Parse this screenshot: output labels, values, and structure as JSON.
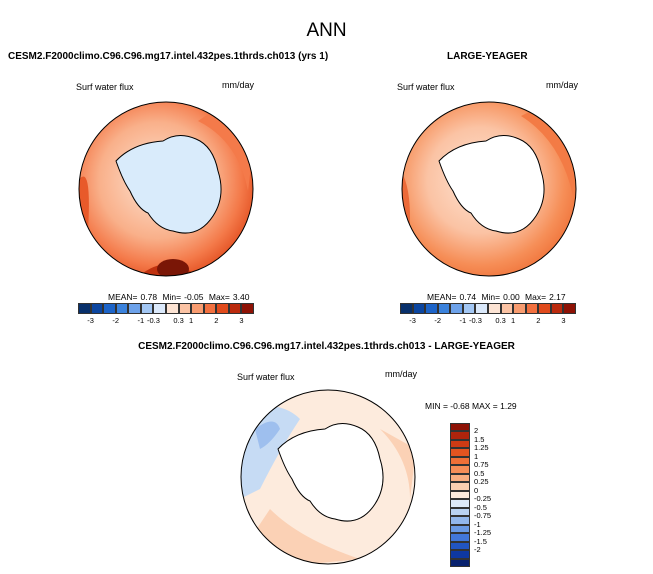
{
  "title": "ANN",
  "panel1": {
    "title": "CESM2.F2000climo.C96.C96.mg17.intel.432pes.1thrds.ch013 (yrs 1)",
    "field": "Surf water flux",
    "units": "mm/day",
    "mean_label": "MEAN=",
    "mean": "0.78",
    "min_label": "Min=",
    "min": "-0.05",
    "max_label": "Max=",
    "max": "3.40"
  },
  "panel2": {
    "title": "LARGE-YEAGER",
    "field": "Surf water flux",
    "units": "mm/day",
    "mean_label": "MEAN=",
    "mean": "0.74",
    "min_label": "Min=",
    "min": "0.00",
    "max_label": "Max=",
    "max": "2.17"
  },
  "panel3": {
    "title": "CESM2.F2000climo.C96.C96.mg17.intel.432pes.1thrds.ch013 - LARGE-YEAGER",
    "field": "Surf water flux",
    "units": "mm/day",
    "minmax_label": "MIN =  -0.68  MAX =   1.29"
  },
  "colorbar_horizontal": {
    "colors": [
      "#08306b",
      "#0c46a0",
      "#1d64c8",
      "#3b82dc",
      "#6da2ea",
      "#a3c7f4",
      "#dbe9fb",
      "#fde4d4",
      "#fbc3a4",
      "#f89c70",
      "#f2703f",
      "#e04a1c",
      "#bb2a0d",
      "#8e1205"
    ],
    "ticks": [
      "-3",
      "-2",
      "-1",
      "-0.3",
      "0.3",
      "1",
      "2",
      "3"
    ]
  },
  "colorbar_vertical": {
    "colors": [
      "#8e1205",
      "#b0240c",
      "#cf3b14",
      "#e35420",
      "#ef7037",
      "#f68e57",
      "#f9ae80",
      "#fbcfb0",
      "#fdebdd",
      "#dde9f8",
      "#b9d2f2",
      "#92b7ec",
      "#6a9ae4",
      "#4277d8",
      "#2155c2",
      "#0e38a0",
      "#08216e"
    ],
    "ticks": [
      "2",
      "1.5",
      "1.25",
      "1",
      "0.75",
      "0.5",
      "0.25",
      "0",
      "-0.25",
      "-0.5",
      "-0.75",
      "-1",
      "-1.25",
      "-1.5",
      "-2"
    ]
  },
  "chart_data": [
    {
      "type": "heatmap",
      "title": "CESM2.F2000climo.C96.C96.mg17.intel.432pes.1thrds.ch013 (yrs 1)",
      "variable": "Surf water flux",
      "units": "mm/day",
      "projection": "south polar stereographic",
      "mean": 0.78,
      "min": -0.05,
      "max": 3.4,
      "levels": [
        -3,
        -2,
        -1,
        -0.3,
        0.3,
        1,
        2,
        3
      ]
    },
    {
      "type": "heatmap",
      "title": "LARGE-YEAGER",
      "variable": "Surf water flux",
      "units": "mm/day",
      "projection": "south polar stereographic",
      "mean": 0.74,
      "min": 0.0,
      "max": 2.17,
      "levels": [
        -3,
        -2,
        -1,
        -0.3,
        0.3,
        1,
        2,
        3
      ]
    },
    {
      "type": "heatmap",
      "title": "CESM2.F2000climo.C96.C96.mg17.intel.432pes.1thrds.ch013 - LARGE-YEAGER",
      "variable": "Surf water flux",
      "units": "mm/day",
      "projection": "south polar stereographic",
      "min": -0.68,
      "max": 1.29,
      "levels": [
        -2,
        -1.5,
        -1.25,
        -1,
        -0.75,
        -0.5,
        -0.25,
        0,
        0.25,
        0.5,
        0.75,
        1,
        1.25,
        1.5,
        2
      ]
    }
  ]
}
